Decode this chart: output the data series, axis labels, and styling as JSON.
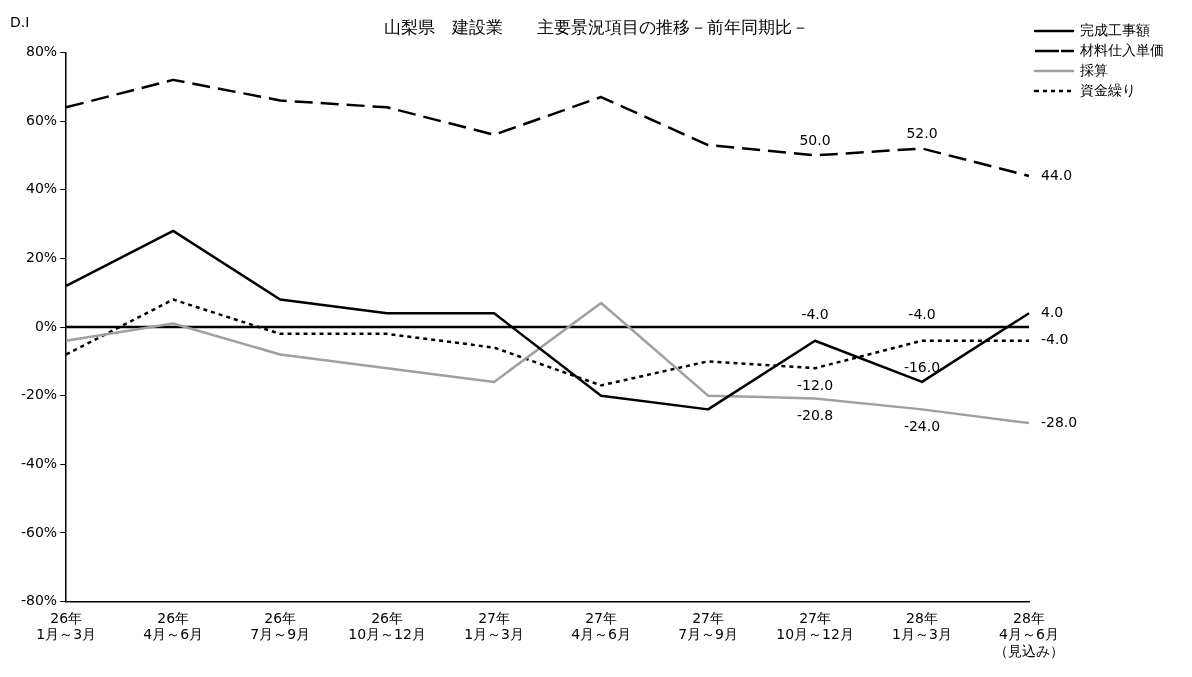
{
  "chart_data": {
    "type": "line",
    "title": "山梨県　建設業　　主要景況項目の推移－前年同期比－",
    "ylabel": "D.I",
    "categories": [
      [
        "26年",
        "1月～3月"
      ],
      [
        "26年",
        "4月～6月"
      ],
      [
        "26年",
        "7月～9月"
      ],
      [
        "26年",
        "10月～12月"
      ],
      [
        "27年",
        "1月～3月"
      ],
      [
        "27年",
        "4月～6月"
      ],
      [
        "27年",
        "7月～9月"
      ],
      [
        "27年",
        "10月～12月"
      ],
      [
        "28年",
        "1月～3月"
      ],
      [
        "28年",
        "4月～6月",
        "（見込み）"
      ]
    ],
    "series": [
      {
        "name": "完成工事額",
        "color": "#000000",
        "line_style": "solid",
        "values": [
          12,
          28,
          8,
          4,
          4,
          -20,
          -24,
          -4,
          -16,
          4
        ],
        "value_labels": [
          null,
          null,
          null,
          null,
          null,
          null,
          null,
          "-4.0",
          "-16.0",
          "4.0"
        ]
      },
      {
        "name": "材料仕入単価",
        "color": "#000000",
        "line_style": "dashed",
        "values": [
          64,
          72,
          66,
          64,
          56,
          67,
          53,
          50,
          52,
          44
        ],
        "value_labels": [
          null,
          null,
          null,
          null,
          null,
          null,
          null,
          "50.0",
          "52.0",
          "44.0"
        ]
      },
      {
        "name": "採算",
        "color": "#a0a0a0",
        "line_style": "solid",
        "values": [
          -4,
          1,
          -8,
          -12,
          -16,
          7,
          -20,
          -20.8,
          -24,
          -28
        ],
        "value_labels": [
          null,
          null,
          null,
          null,
          null,
          null,
          null,
          "-20.8",
          "-24.0",
          "-28.0"
        ]
      },
      {
        "name": "資金繰り",
        "color": "#000000",
        "line_style": "dotted",
        "values": [
          -8,
          8,
          -2,
          -2,
          -6,
          -17,
          -10,
          -12,
          -4,
          -4
        ],
        "value_labels": [
          null,
          null,
          null,
          null,
          null,
          null,
          null,
          "-12.0",
          "-4.0",
          "-4.0"
        ]
      }
    ],
    "ylim": [
      -80,
      80
    ],
    "yticks": [
      {
        "value": -80,
        "label": "-80%"
      },
      {
        "value": -60,
        "label": "-60%"
      },
      {
        "value": -40,
        "label": "-40%"
      },
      {
        "value": -20,
        "label": "-20%"
      },
      {
        "value": 0,
        "label": "0%"
      },
      {
        "value": 20,
        "label": "20%"
      },
      {
        "value": 40,
        "label": "40%"
      },
      {
        "value": 60,
        "label": "60%"
      },
      {
        "value": 80,
        "label": "80%"
      }
    ],
    "ref_lines": [
      {
        "axis": "y",
        "value": 0,
        "color": "#000000"
      }
    ],
    "grid": false,
    "legend": "top right",
    "marker": "none"
  }
}
